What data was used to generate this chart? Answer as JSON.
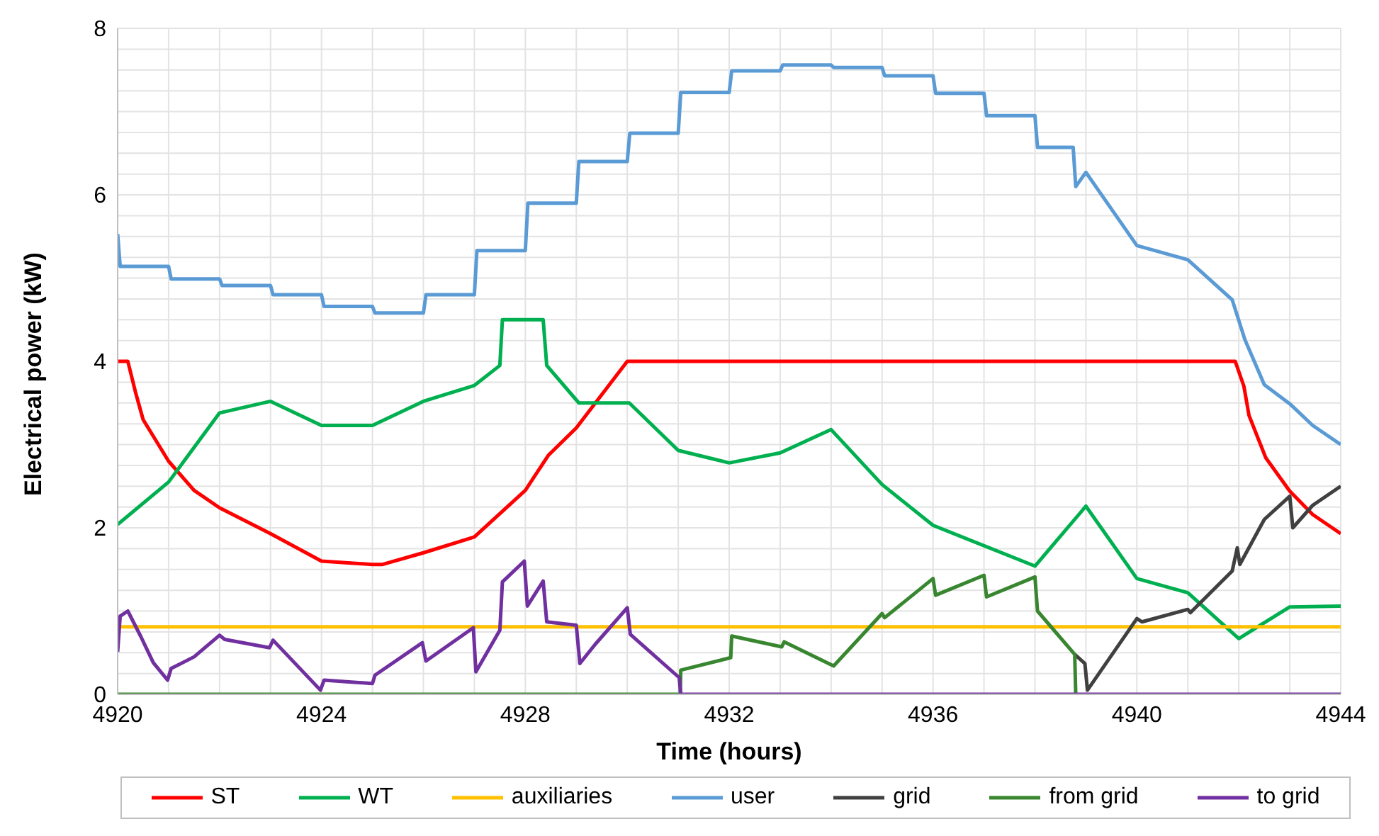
{
  "chart_data": {
    "type": "line",
    "xlabel": "Time (hours)",
    "ylabel": "Electrical power (kW)",
    "xlim": [
      4920,
      4944
    ],
    "xticks": [
      4920,
      {
        "value": 4921,
        "label": null
      },
      {
        "value": 4922,
        "label": null
      },
      {
        "value": 4923,
        "label": null
      },
      4924,
      {
        "value": 4925,
        "label": null
      },
      {
        "value": 4926,
        "label": null
      },
      {
        "value": 4927,
        "label": null
      },
      4928,
      {
        "value": 4929,
        "label": null
      },
      {
        "value": 4930,
        "label": null
      },
      {
        "value": 4931,
        "label": null
      },
      4932,
      {
        "value": 4933,
        "label": null
      },
      {
        "value": 4934,
        "label": null
      },
      {
        "value": 4935,
        "label": null
      },
      4936,
      {
        "value": 4937,
        "label": null
      },
      {
        "value": 4938,
        "label": null
      },
      {
        "value": 4939,
        "label": null
      },
      4940,
      {
        "value": 4941,
        "label": null
      },
      {
        "value": 4942,
        "label": null
      },
      {
        "value": 4943,
        "label": null
      },
      4944
    ],
    "ylim": [
      0,
      8
    ],
    "yticks": [
      0,
      {
        "value": 0.25,
        "label": null
      },
      {
        "value": 0.5,
        "label": null
      },
      {
        "value": 0.75,
        "label": null
      },
      {
        "value": 1,
        "label": null
      },
      {
        "value": 1.25,
        "label": null
      },
      {
        "value": 1.5,
        "label": null
      },
      {
        "value": 1.75,
        "label": null
      },
      2,
      {
        "value": 2.25,
        "label": null
      },
      {
        "value": 2.5,
        "label": null
      },
      {
        "value": 2.75,
        "label": null
      },
      {
        "value": 3,
        "label": null
      },
      {
        "value": 3.25,
        "label": null
      },
      {
        "value": 3.5,
        "label": null
      },
      {
        "value": 3.75,
        "label": null
      },
      4,
      {
        "value": 4.25,
        "label": null
      },
      {
        "value": 4.5,
        "label": null
      },
      {
        "value": 4.75,
        "label": null
      },
      {
        "value": 5,
        "label": null
      },
      {
        "value": 5.25,
        "label": null
      },
      {
        "value": 5.5,
        "label": null
      },
      {
        "value": 5.75,
        "label": null
      },
      6,
      {
        "value": 6.25,
        "label": null
      },
      {
        "value": 6.5,
        "label": null
      },
      {
        "value": 6.75,
        "label": null
      },
      {
        "value": 7,
        "label": null
      },
      {
        "value": 7.25,
        "label": null
      },
      {
        "value": 7.5,
        "label": null
      },
      {
        "value": 7.75,
        "label": null
      },
      8
    ],
    "grid": true,
    "legend": "bottom",
    "series": [
      {
        "name": "ST",
        "color": "#ff0000",
        "x": [
          4920,
          4920.2,
          4920.35,
          4920.5,
          4921,
          4921.5,
          4922,
          4923,
          4924,
          4925,
          4925.2,
          4926,
          4927,
          4928,
          4928.45,
          4929,
          4930,
          4941.93,
          4942.1,
          4942.2,
          4942.53,
          4943,
          4943.45,
          4944
        ],
        "values": [
          4,
          4,
          3.63,
          3.3,
          2.8,
          2.45,
          2.24,
          1.93,
          1.6,
          1.56,
          1.56,
          1.7,
          1.89,
          2.45,
          2.87,
          3.2,
          4,
          4,
          3.7,
          3.35,
          2.84,
          2.44,
          2.16,
          1.93
        ]
      },
      {
        "name": "WT",
        "color": "#00b050",
        "x": [
          4920,
          4921,
          4922,
          4923,
          4924,
          4925,
          4926,
          4927,
          4927.5,
          4927.55,
          4928.35,
          4928.42,
          4929.05,
          4930.04,
          4931,
          4932,
          4933,
          4934,
          4935,
          4936,
          4938,
          4939,
          4940,
          4941,
          4942,
          4943,
          4944
        ],
        "values": [
          2.04,
          2.55,
          3.38,
          3.52,
          3.23,
          3.23,
          3.52,
          3.71,
          3.95,
          4.5,
          4.5,
          3.95,
          3.5,
          3.5,
          2.93,
          2.78,
          2.9,
          3.18,
          2.52,
          2.03,
          1.54,
          2.26,
          1.39,
          1.22,
          0.67,
          1.05,
          1.06
        ]
      },
      {
        "name": "auxiliaries",
        "color": "#ffc000",
        "x": [
          4920,
          4944
        ],
        "values": [
          0.81,
          0.81
        ]
      },
      {
        "name": "user",
        "color": "#5b9bd5",
        "x": [
          4920,
          4920.05,
          4921,
          4921.05,
          4922,
          4922.05,
          4923,
          4923.05,
          4924,
          4924.05,
          4925,
          4925.05,
          4926,
          4926.05,
          4927,
          4927.05,
          4928,
          4928.05,
          4929,
          4929.05,
          4930,
          4930.05,
          4931,
          4931.05,
          4932,
          4932.05,
          4933,
          4933.05,
          4934,
          4934.05,
          4935,
          4935.05,
          4936,
          4936.05,
          4937,
          4937.05,
          4938,
          4938.05,
          4938.75,
          4938.8,
          4939,
          4940,
          4941,
          4941.87,
          4942.12,
          4942.5,
          4943,
          4943.45,
          4944
        ],
        "values": [
          5.53,
          5.14,
          5.14,
          4.99,
          4.99,
          4.91,
          4.91,
          4.8,
          4.8,
          4.66,
          4.66,
          4.58,
          4.58,
          4.8,
          4.8,
          5.33,
          5.33,
          5.9,
          5.9,
          6.4,
          6.4,
          6.74,
          6.74,
          7.23,
          7.23,
          7.49,
          7.49,
          7.56,
          7.56,
          7.53,
          7.53,
          7.43,
          7.43,
          7.22,
          7.22,
          6.95,
          6.95,
          6.57,
          6.57,
          6.1,
          6.27,
          5.39,
          5.22,
          4.74,
          4.26,
          3.72,
          3.49,
          3.23,
          3.0
        ]
      },
      {
        "name": "grid",
        "color": "#404040",
        "x": [
          4938.78,
          4938.98,
          4939.03,
          4940,
          4940.1,
          4941,
          4941.05,
          4941.87,
          4941.97,
          4942.02,
          4942.5,
          4943,
          4943.06,
          4943.45,
          4944
        ],
        "values": [
          0.48,
          0.37,
          0.05,
          0.91,
          0.87,
          1.02,
          0.98,
          1.48,
          1.76,
          1.56,
          2.1,
          2.38,
          2.0,
          2.27,
          2.5
        ]
      },
      {
        "name": "from grid",
        "color": "#38862f",
        "x": [
          4920,
          4931.04,
          4931.05,
          4932.03,
          4932.05,
          4933.03,
          4933.08,
          4934.05,
          4935,
          4935.05,
          4936,
          4936.05,
          4937,
          4937.05,
          4938,
          4938.05,
          4938.78,
          4938.8
        ],
        "values": [
          0,
          0,
          0.29,
          0.44,
          0.7,
          0.57,
          0.63,
          0.34,
          0.97,
          0.92,
          1.39,
          1.19,
          1.43,
          1.17,
          1.41,
          1.0,
          0.48,
          0
        ]
      },
      {
        "name": "to grid",
        "color": "#7030a0",
        "x": [
          4920,
          4920.05,
          4920.2,
          4920.45,
          4920.7,
          4920.98,
          4921.05,
          4921.5,
          4922,
          4922.1,
          4922.98,
          4923.05,
          4923.98,
          4924.05,
          4925,
          4925.05,
          4925.98,
          4926.05,
          4926.98,
          4927.03,
          4927.5,
          4927.55,
          4927.98,
          4928.04,
          4928.35,
          4928.42,
          4929,
          4929.07,
          4929.37,
          4930,
          4930.06,
          4931.02,
          4931.05,
          4944
        ],
        "values": [
          0.51,
          0.94,
          1.0,
          0.7,
          0.38,
          0.17,
          0.31,
          0.45,
          0.71,
          0.66,
          0.56,
          0.65,
          0.05,
          0.17,
          0.13,
          0.23,
          0.62,
          0.4,
          0.8,
          0.27,
          0.77,
          1.35,
          1.6,
          1.06,
          1.36,
          0.87,
          0.83,
          0.37,
          0.6,
          1.04,
          0.72,
          0.2,
          0,
          0
        ]
      }
    ]
  }
}
